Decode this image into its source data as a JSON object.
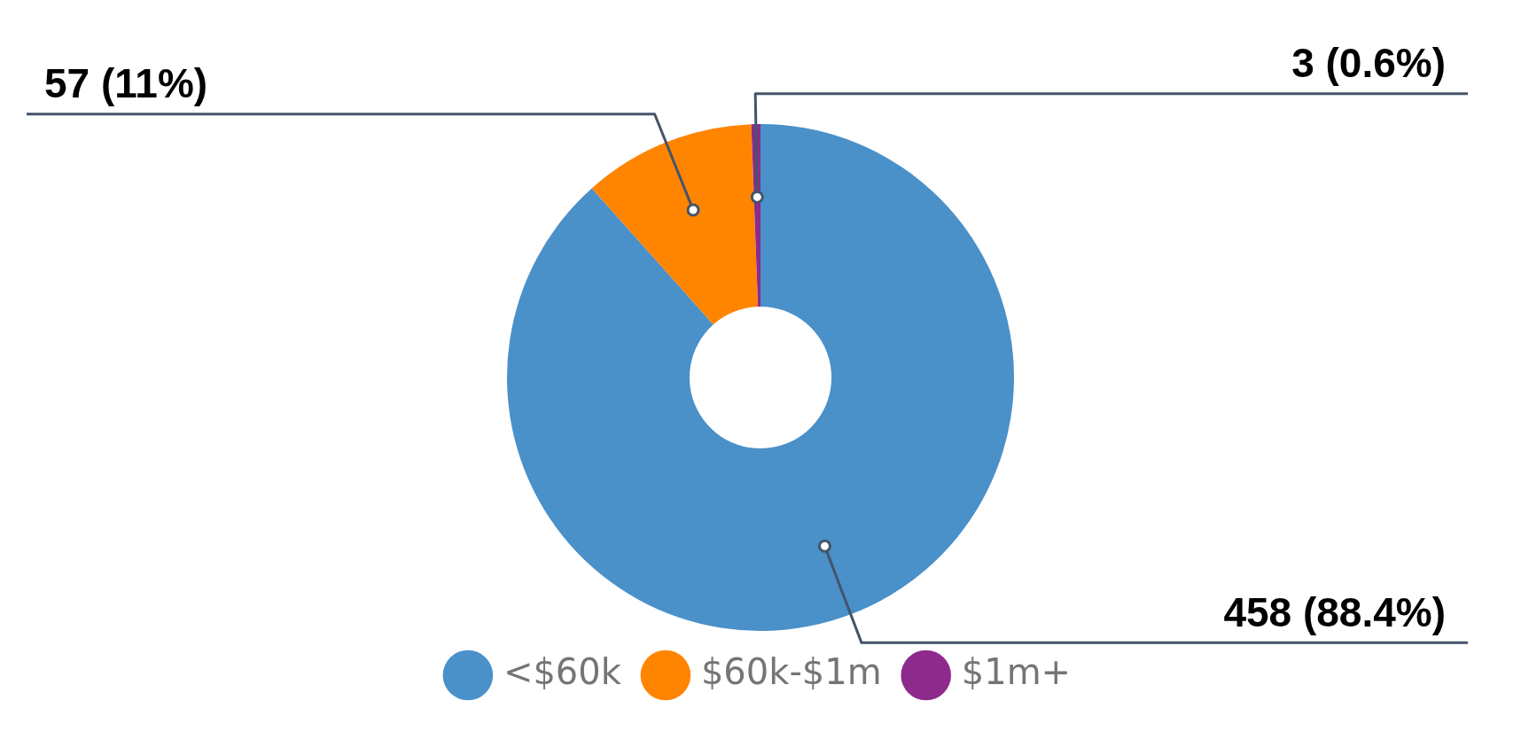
{
  "chart_data": {
    "type": "donut",
    "categories": [
      "<$60k",
      "$60k-$1m",
      "$1m+"
    ],
    "values": [
      458,
      57,
      3
    ],
    "colors": [
      "#4a90c9",
      "#ff8400",
      "#8e2a8c"
    ],
    "value_labels": [
      "458 (88.4%)",
      "57 (11%)",
      "3 (0.6%)"
    ],
    "legend": "bottom"
  }
}
